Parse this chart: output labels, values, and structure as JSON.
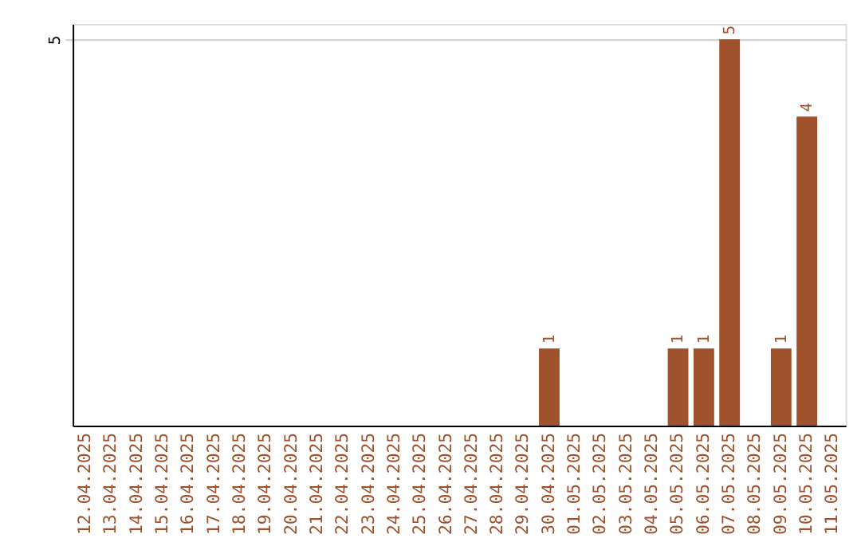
{
  "chart_data": {
    "type": "bar",
    "categories": [
      "12.04.2025",
      "13.04.2025",
      "14.04.2025",
      "15.04.2025",
      "16.04.2025",
      "17.04.2025",
      "18.04.2025",
      "19.04.2025",
      "20.04.2025",
      "21.04.2025",
      "22.04.2025",
      "23.04.2025",
      "24.04.2025",
      "25.04.2025",
      "26.04.2025",
      "27.04.2025",
      "28.04.2025",
      "29.04.2025",
      "30.04.2025",
      "01.05.2025",
      "02.05.2025",
      "03.05.2025",
      "04.05.2025",
      "05.05.2025",
      "06.05.2025",
      "07.05.2025",
      "08.05.2025",
      "09.05.2025",
      "10.05.2025",
      "11.05.2025"
    ],
    "values": [
      null,
      null,
      null,
      null,
      null,
      null,
      null,
      null,
      null,
      null,
      null,
      null,
      null,
      null,
      null,
      null,
      null,
      null,
      1,
      null,
      null,
      null,
      null,
      1,
      1,
      5,
      null,
      1,
      4,
      null
    ],
    "color": "#a0522d",
    "ylim": [
      0,
      5.2
    ],
    "yticks": [
      5
    ],
    "grid": "y",
    "data_labels": true
  }
}
